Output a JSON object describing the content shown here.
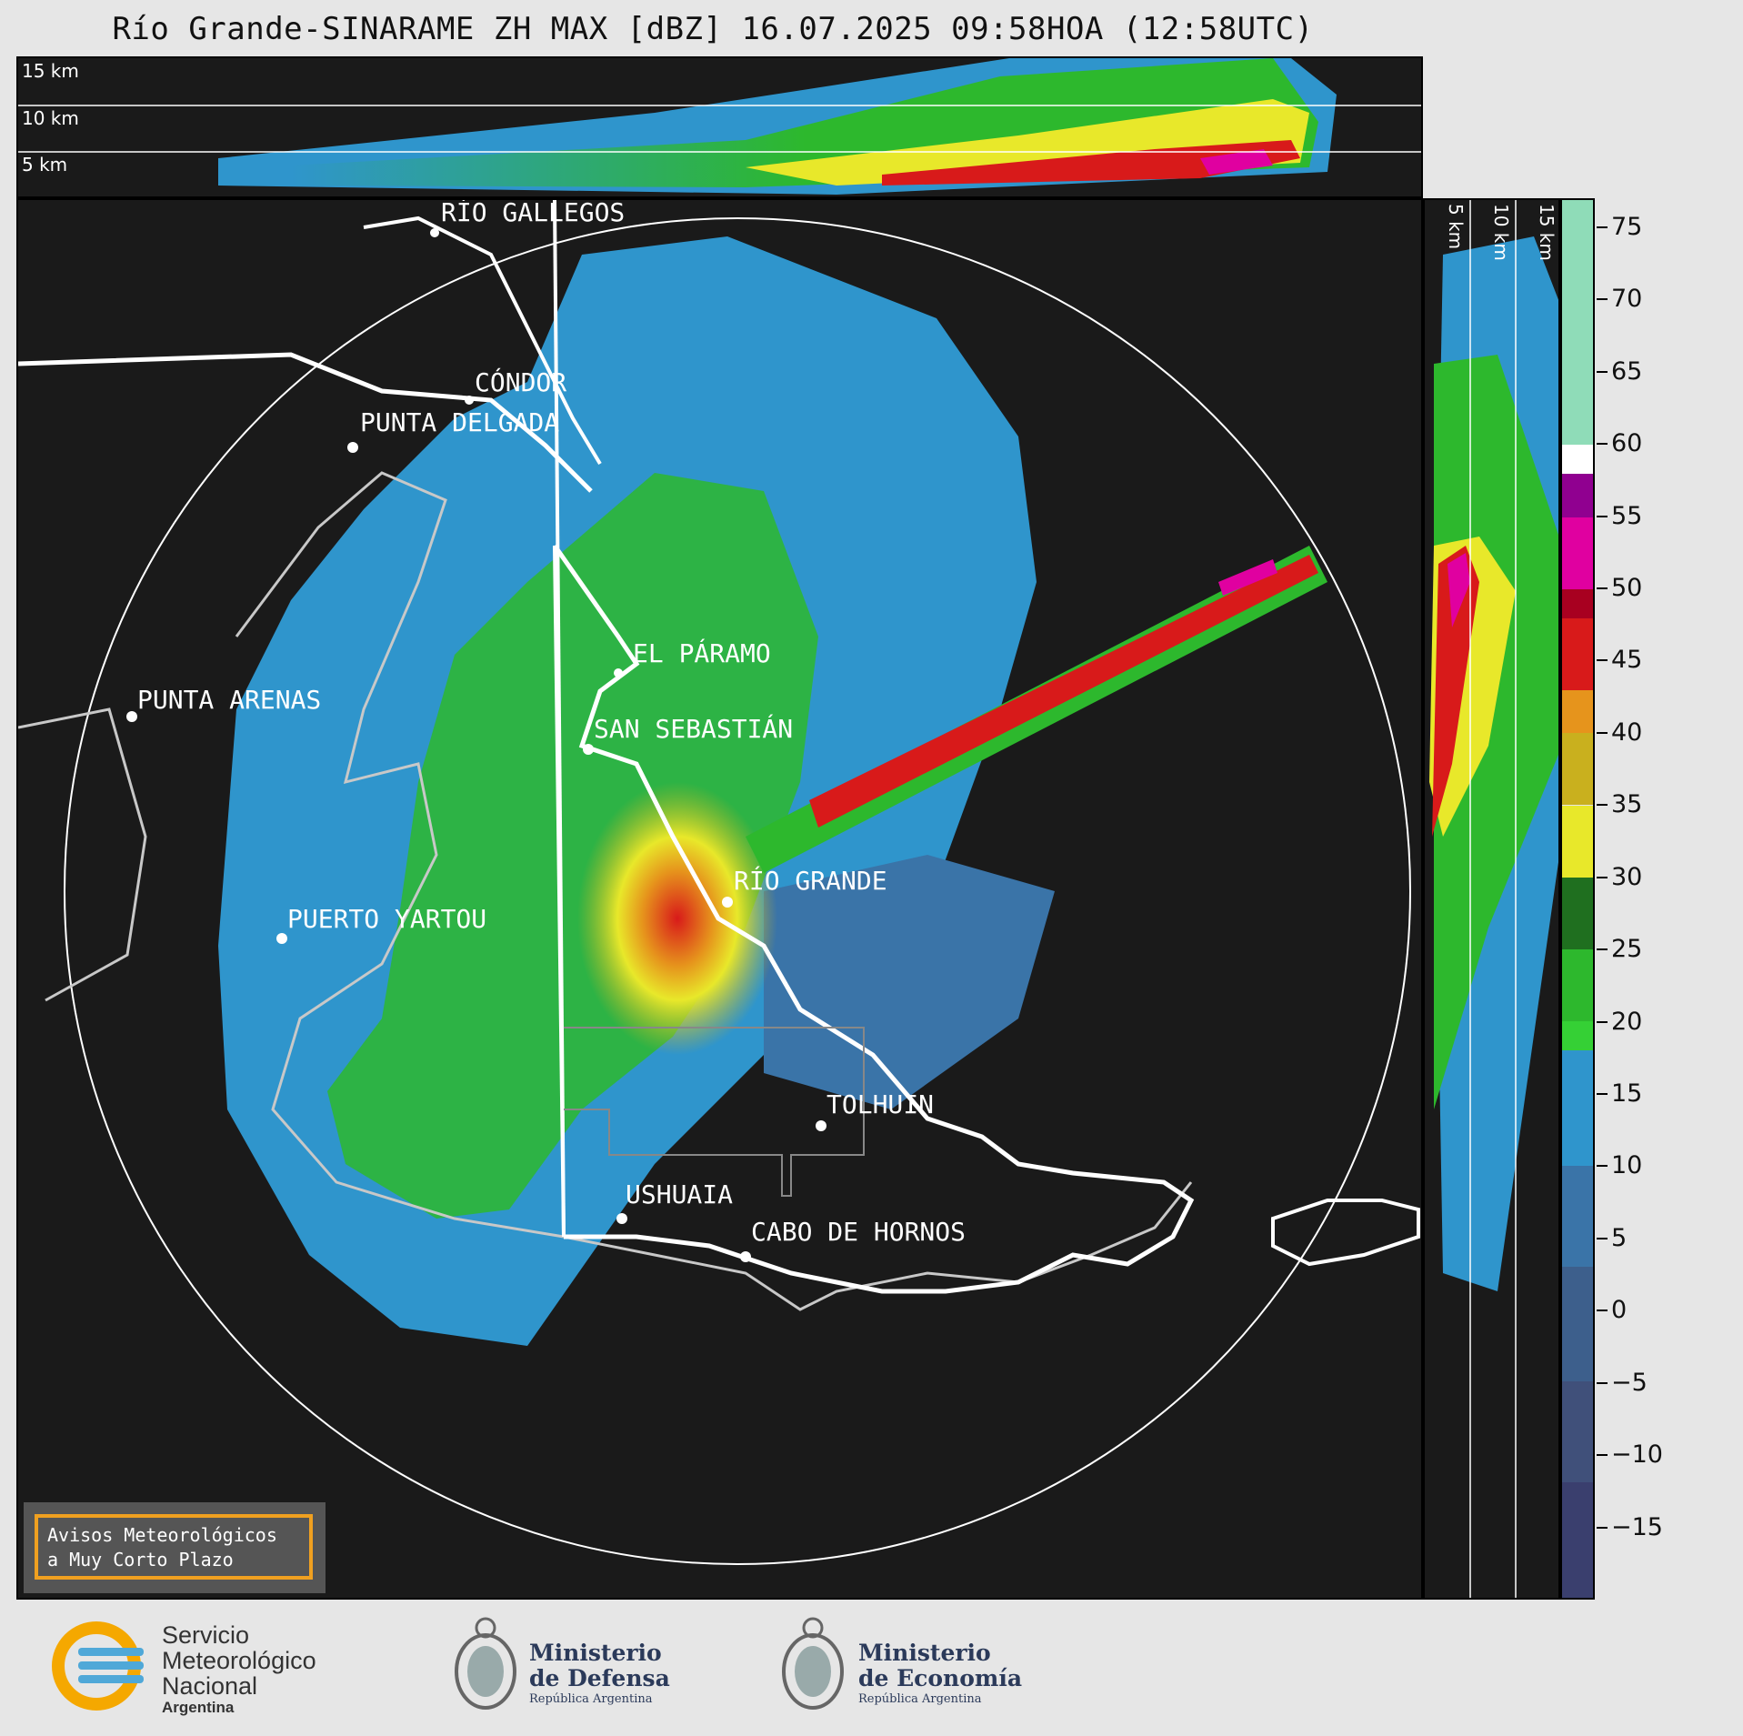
{
  "title": "Río Grande-SINARAME ZH MAX [dBZ] 16.07.2025 09:58HOA (12:58UTC)",
  "top_panel": {
    "height_labels": [
      "15 km",
      "10 km",
      "5 km"
    ]
  },
  "side_panel": {
    "height_labels": [
      "5 km",
      "10 km",
      "15 km"
    ]
  },
  "map": {
    "cities": [
      {
        "name": "RÍO GALLEGOS"
      },
      {
        "name": "CÓNDOR"
      },
      {
        "name": "PUNTA DELGADA"
      },
      {
        "name": "EL PÁRAMO"
      },
      {
        "name": "SAN SEBASTIÁN"
      },
      {
        "name": "PUNTA ARENAS"
      },
      {
        "name": "RÍO GRANDE"
      },
      {
        "name": "PUERTO YARTOU"
      },
      {
        "name": "TOLHUIN"
      },
      {
        "name": "USHUAIA"
      },
      {
        "name": "CABO DE HORNOS"
      }
    ]
  },
  "colorbar": {
    "unit": "dBZ",
    "ticks": [
      "75",
      "70",
      "65",
      "60",
      "55",
      "50",
      "45",
      "40",
      "35",
      "30",
      "25",
      "20",
      "15",
      "10",
      "5",
      "0",
      "−5",
      "−10",
      "−15"
    ],
    "range": [
      -20,
      77
    ],
    "stops": [
      {
        "from": -20,
        "to": -12,
        "color": "#3a3f6e"
      },
      {
        "from": -12,
        "to": -5,
        "color": "#40507a"
      },
      {
        "from": -5,
        "to": 3,
        "color": "#3d5f8c"
      },
      {
        "from": 3,
        "to": 10,
        "color": "#3a74a8"
      },
      {
        "from": 10,
        "to": 18,
        "color": "#2f95cc"
      },
      {
        "from": 18,
        "to": 20,
        "color": "#35d035"
      },
      {
        "from": 20,
        "to": 25,
        "color": "#2db82d"
      },
      {
        "from": 25,
        "to": 30,
        "color": "#1f6f1f"
      },
      {
        "from": 30,
        "to": 35,
        "color": "#e8e82a"
      },
      {
        "from": 35,
        "to": 40,
        "color": "#c9b01e"
      },
      {
        "from": 40,
        "to": 43,
        "color": "#e6941c"
      },
      {
        "from": 43,
        "to": 48,
        "color": "#d81a1a"
      },
      {
        "from": 48,
        "to": 50,
        "color": "#a80020"
      },
      {
        "from": 50,
        "to": 55,
        "color": "#e000a0"
      },
      {
        "from": 55,
        "to": 58,
        "color": "#900090"
      },
      {
        "from": 58,
        "to": 60,
        "color": "#ffffff"
      },
      {
        "from": 60,
        "to": 77,
        "color": "#8fdcb8"
      }
    ]
  },
  "notice": {
    "line1": "Avisos Meteorológicos",
    "line2": "a Muy Corto Plazo"
  },
  "logos": {
    "smn": {
      "line1": "Servicio",
      "line2": "Meteorológico",
      "line3": "Nacional",
      "line4": "Argentina"
    },
    "defensa": {
      "line1": "Ministerio",
      "line2": "de Defensa",
      "line3": "República Argentina"
    },
    "economia": {
      "line1": "Ministerio",
      "line2": "de Economía",
      "line3": "República Argentina"
    }
  }
}
